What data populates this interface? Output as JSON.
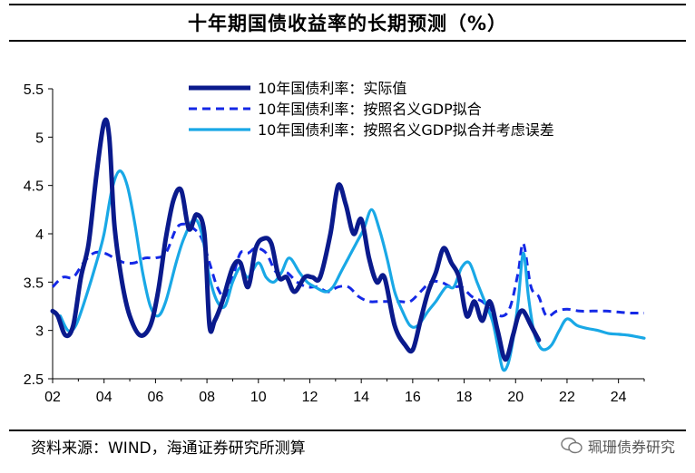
{
  "page": {
    "title": "十年期国债收益率的长期预测（%）",
    "source": "资料来源：WIND，海通证券研究所测算",
    "watermark": "珮珊债券研究"
  },
  "chart_data": {
    "type": "line",
    "title": "十年期国债收益率的长期预测（%）",
    "xlabel": "",
    "ylabel": "",
    "x_tick_labels": [
      "02",
      "04",
      "06",
      "08",
      "10",
      "12",
      "14",
      "16",
      "18",
      "20",
      "22",
      "24"
    ],
    "y_tick_labels": [
      "5.5",
      "5",
      "4.5",
      "4",
      "3.5",
      "3",
      "2.5"
    ],
    "y_ticks": [
      5.5,
      5,
      4.5,
      4,
      3.5,
      3,
      2.5
    ],
    "xlim": [
      2002,
      2025
    ],
    "ylim": [
      2.5,
      5.5
    ],
    "grid": false,
    "legend_position": "top-right",
    "series": [
      {
        "name": "10年国债利率：实际值",
        "color": "#0A1A8C",
        "style": "solid-thick",
        "x": [
          2002.0,
          2002.2,
          2002.5,
          2002.8,
          2003.1,
          2003.4,
          2003.7,
          2004.0,
          2004.2,
          2004.4,
          2004.7,
          2005.0,
          2005.4,
          2005.8,
          2006.1,
          2006.4,
          2006.7,
          2007.0,
          2007.3,
          2007.6,
          2007.9,
          2008.1,
          2008.3,
          2008.6,
          2009.0,
          2009.3,
          2009.6,
          2009.9,
          2010.2,
          2010.5,
          2010.8,
          2011.1,
          2011.4,
          2011.8,
          2012.1,
          2012.4,
          2012.8,
          2013.1,
          2013.4,
          2013.7,
          2014.0,
          2014.3,
          2014.6,
          2014.9,
          2015.3,
          2015.7,
          2016.0,
          2016.3,
          2016.6,
          2016.9,
          2017.2,
          2017.5,
          2017.8,
          2018.1,
          2018.4,
          2018.7,
          2019.0,
          2019.3,
          2019.6,
          2019.9,
          2020.1,
          2020.3,
          2020.6,
          2020.9
        ],
        "values": [
          3.2,
          3.15,
          2.95,
          3.05,
          3.55,
          3.9,
          4.6,
          5.15,
          5.0,
          4.1,
          3.5,
          3.15,
          2.95,
          3.05,
          3.4,
          3.95,
          4.35,
          4.45,
          4.05,
          4.2,
          4.0,
          3.05,
          3.1,
          3.3,
          3.65,
          3.7,
          3.45,
          3.85,
          3.95,
          3.9,
          3.55,
          3.55,
          3.4,
          3.55,
          3.55,
          3.55,
          4.0,
          4.5,
          4.3,
          4.0,
          4.15,
          3.75,
          3.5,
          3.55,
          3.05,
          2.85,
          2.8,
          3.1,
          3.4,
          3.6,
          3.85,
          3.7,
          3.55,
          3.15,
          3.3,
          3.1,
          3.3,
          3.0,
          2.7,
          2.95,
          3.15,
          3.2,
          3.05,
          2.9
        ]
      },
      {
        "name": "10年国债利率：按照名义GDP拟合",
        "color": "#1428E6",
        "style": "dashed",
        "x": [
          2002.0,
          2002.4,
          2002.8,
          2003.2,
          2003.6,
          2004.0,
          2004.4,
          2004.8,
          2005.2,
          2005.6,
          2006.0,
          2006.4,
          2006.8,
          2007.1,
          2007.5,
          2007.8,
          2008.1,
          2008.4,
          2008.7,
          2009.0,
          2009.3,
          2009.6,
          2009.9,
          2010.3,
          2010.7,
          2011.1,
          2011.5,
          2011.9,
          2012.3,
          2012.7,
          2013.1,
          2013.5,
          2013.9,
          2014.3,
          2014.7,
          2015.1,
          2015.5,
          2015.9,
          2016.3,
          2016.7,
          2017.1,
          2017.5,
          2017.9,
          2018.3,
          2018.7,
          2019.1,
          2019.5,
          2019.8,
          2020.1,
          2020.3,
          2020.6,
          2020.9,
          2021.2,
          2021.6,
          2022.0,
          2022.5,
          2023.0,
          2023.5,
          2024.0,
          2024.5,
          2025.0
        ],
        "values": [
          3.45,
          3.55,
          3.55,
          3.7,
          3.8,
          3.8,
          3.75,
          3.7,
          3.7,
          3.75,
          3.75,
          3.8,
          4.05,
          4.1,
          4.05,
          3.95,
          3.7,
          3.45,
          3.35,
          3.55,
          3.8,
          3.8,
          3.85,
          3.8,
          3.6,
          3.6,
          3.5,
          3.45,
          3.45,
          3.4,
          3.45,
          3.45,
          3.35,
          3.3,
          3.3,
          3.3,
          3.3,
          3.3,
          3.4,
          3.5,
          3.5,
          3.45,
          3.45,
          3.35,
          3.3,
          3.2,
          3.15,
          3.25,
          3.6,
          3.9,
          3.45,
          3.35,
          3.15,
          3.2,
          3.22,
          3.2,
          3.2,
          3.2,
          3.19,
          3.18,
          3.18
        ]
      },
      {
        "name": "10年国债利率：按照名义GDP拟合并考虑误差",
        "color": "#19A8E6",
        "style": "solid",
        "x": [
          2002.3,
          2002.6,
          2002.9,
          2003.3,
          2003.7,
          2004.0,
          2004.3,
          2004.6,
          2004.9,
          2005.2,
          2005.5,
          2005.8,
          2006.1,
          2006.4,
          2006.8,
          2007.1,
          2007.5,
          2007.8,
          2008.1,
          2008.4,
          2008.7,
          2009.0,
          2009.3,
          2009.6,
          2010.0,
          2010.3,
          2010.6,
          2010.9,
          2011.2,
          2011.6,
          2011.9,
          2012.2,
          2012.6,
          2012.9,
          2013.2,
          2013.5,
          2013.8,
          2014.1,
          2014.4,
          2014.7,
          2015.0,
          2015.3,
          2015.6,
          2015.9,
          2016.2,
          2016.6,
          2016.9,
          2017.3,
          2017.6,
          2017.9,
          2018.2,
          2018.5,
          2018.8,
          2019.1,
          2019.3,
          2019.5,
          2019.7,
          2019.9,
          2020.1,
          2020.3,
          2020.5,
          2020.7,
          2020.9,
          2021.1,
          2021.4,
          2021.7,
          2022.0,
          2022.4,
          2022.8,
          2023.2,
          2023.6,
          2024.0,
          2024.4,
          2024.8,
          2025.0
        ],
        "values": [
          3.15,
          3.0,
          3.05,
          3.35,
          3.7,
          4.0,
          4.45,
          4.65,
          4.5,
          4.1,
          3.6,
          3.25,
          3.15,
          3.3,
          3.7,
          3.95,
          4.15,
          4.0,
          3.55,
          3.3,
          3.25,
          3.5,
          3.65,
          3.55,
          3.7,
          3.55,
          3.5,
          3.6,
          3.75,
          3.6,
          3.5,
          3.45,
          3.4,
          3.45,
          3.6,
          3.75,
          3.9,
          4.05,
          4.25,
          4.05,
          3.75,
          3.4,
          3.2,
          3.05,
          3.05,
          3.2,
          3.3,
          3.45,
          3.45,
          3.65,
          3.7,
          3.5,
          3.3,
          3.1,
          2.85,
          2.6,
          2.65,
          2.9,
          3.3,
          3.8,
          3.35,
          3.0,
          2.85,
          2.8,
          2.85,
          3.0,
          3.12,
          3.05,
          3.02,
          3.0,
          2.97,
          2.96,
          2.95,
          2.93,
          2.92
        ]
      }
    ]
  }
}
